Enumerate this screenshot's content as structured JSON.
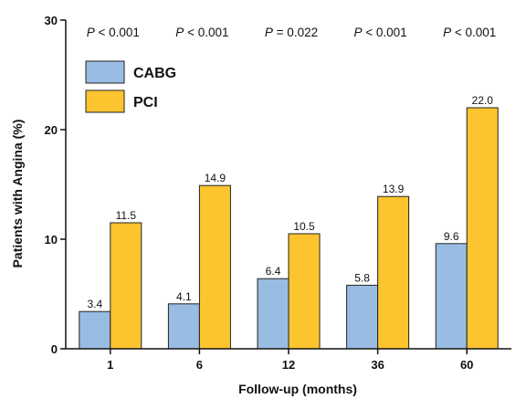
{
  "chart_data": {
    "type": "bar",
    "categories": [
      "1",
      "6",
      "12",
      "36",
      "60"
    ],
    "series": [
      {
        "name": "CABG",
        "values": [
          3.4,
          4.1,
          6.4,
          5.8,
          9.6
        ],
        "labels": [
          "3.4",
          "4.1",
          "6.4",
          "5.8",
          "9.6"
        ],
        "color": "#99bce3"
      },
      {
        "name": "PCI",
        "values": [
          11.5,
          14.9,
          10.5,
          13.9,
          22.0
        ],
        "labels": [
          "11.5",
          "14.9",
          "10.5",
          "13.9",
          "22.0"
        ],
        "color": "#fcc530"
      }
    ],
    "annotations": [
      {
        "prefix": "P",
        "text": " < 0.001"
      },
      {
        "prefix": "P",
        "text": " < 0.001"
      },
      {
        "prefix": "P",
        "text": " = 0.022"
      },
      {
        "prefix": "P",
        "text": " < 0.001"
      },
      {
        "prefix": "P",
        "text": " < 0.001"
      }
    ],
    "xlabel": "Follow-up (months)",
    "ylabel": "Patients with Angina  (%)",
    "ylim": [
      0,
      30
    ],
    "yticks": [
      0,
      10,
      20,
      30
    ],
    "grid": false,
    "legend_position": "top-left"
  }
}
